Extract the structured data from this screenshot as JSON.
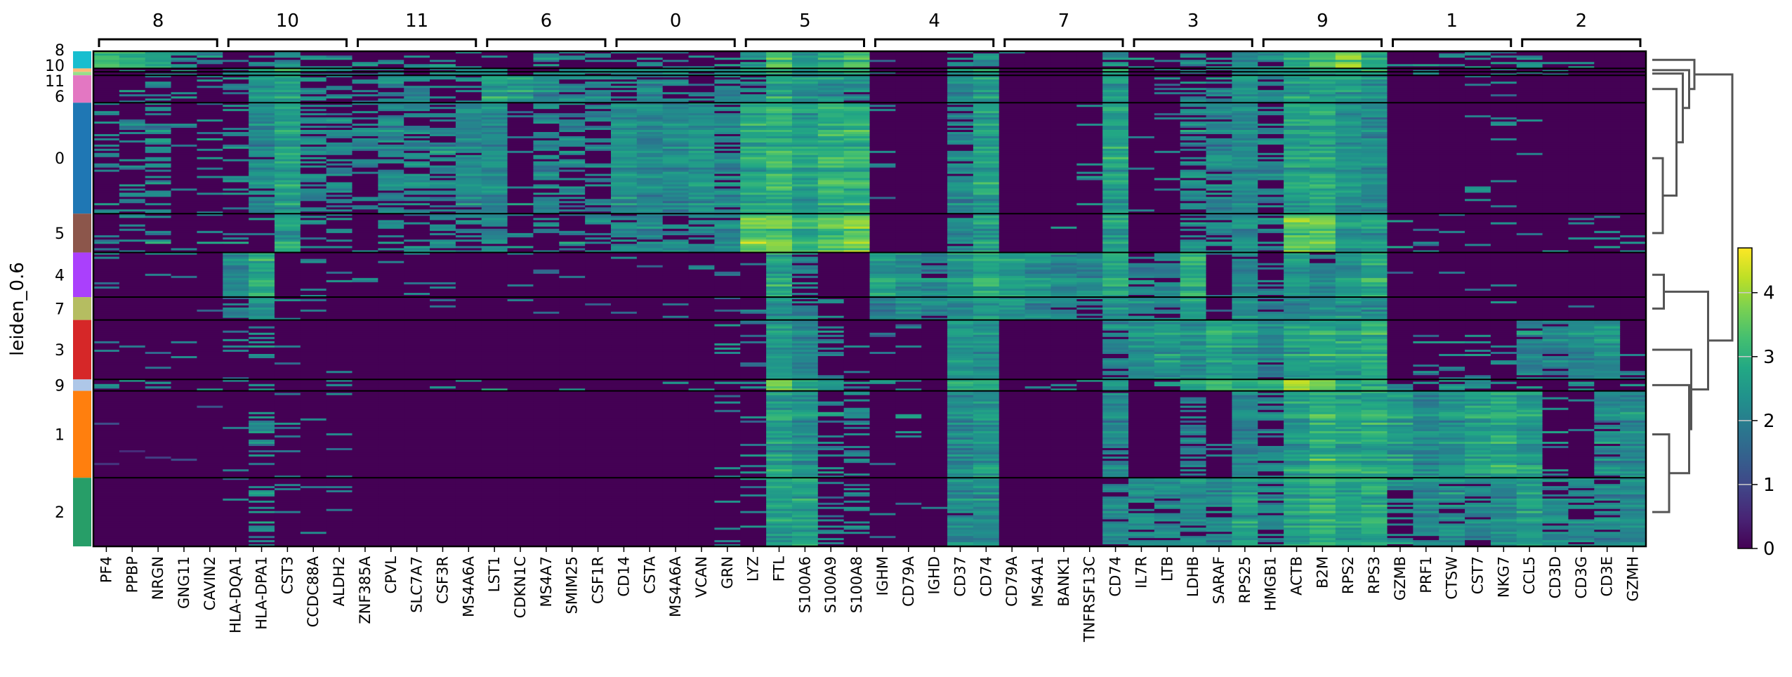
{
  "chart_data": {
    "type": "heatmap",
    "ylabel": "leiden_0.6",
    "colorbar": {
      "min": 0,
      "max": 4.7,
      "ticks": [
        "0",
        "1",
        "2",
        "3",
        "4"
      ],
      "colormap": "viridis"
    },
    "clusters": [
      "8",
      "10",
      "11",
      "6",
      "0",
      "5",
      "4",
      "7",
      "3",
      "9",
      "1",
      "2"
    ],
    "cluster_colors": [
      "#17becf",
      "#ffbb78",
      "#98df8a",
      "#e377c2",
      "#1f77b4",
      "#8c564b",
      "#aa40fc",
      "#b5bd61",
      "#d62728",
      "#aec7e8",
      "#ff7f0e",
      "#279e68"
    ],
    "cluster_relative_size": [
      15,
      3,
      3,
      24,
      97,
      34,
      39,
      20,
      52,
      10,
      76,
      60
    ],
    "gene_groups": [
      {
        "label": "8",
        "genes": [
          "PF4",
          "PPBP",
          "NRGN",
          "GNG11",
          "CAVIN2"
        ]
      },
      {
        "label": "10",
        "genes": [
          "HLA-DQA1",
          "HLA-DPA1",
          "CST3",
          "CCDC88A",
          "ALDH2"
        ]
      },
      {
        "label": "11",
        "genes": [
          "ZNF385A",
          "CPVL",
          "SLC7A7",
          "CSF3R",
          "MS4A6A"
        ]
      },
      {
        "label": "6",
        "genes": [
          "LST1",
          "CDKN1C",
          "MS4A7",
          "SMIM25",
          "CSF1R"
        ]
      },
      {
        "label": "0",
        "genes": [
          "CD14",
          "CSTA",
          "MS4A6A",
          "VCAN",
          "GRN"
        ]
      },
      {
        "label": "5",
        "genes": [
          "LYZ",
          "FTL",
          "S100A6",
          "S100A9",
          "S100A8"
        ]
      },
      {
        "label": "4",
        "genes": [
          "IGHM",
          "CD79A",
          "IGHD",
          "CD37",
          "CD74"
        ]
      },
      {
        "label": "7",
        "genes": [
          "CD79A",
          "MS4A1",
          "BANK1",
          "TNFRSF13C",
          "CD74"
        ]
      },
      {
        "label": "3",
        "genes": [
          "IL7R",
          "LTB",
          "LDHB",
          "SARAF",
          "RPS25"
        ]
      },
      {
        "label": "9",
        "genes": [
          "HMGB1",
          "ACTB",
          "B2M",
          "RPS2",
          "RPS3"
        ]
      },
      {
        "label": "1",
        "genes": [
          "GZMB",
          "PRF1",
          "CTSW",
          "CST7",
          "NKG7"
        ]
      },
      {
        "label": "2",
        "genes": [
          "CCL5",
          "CD3D",
          "CD3G",
          "CD3E",
          "GZMH"
        ]
      }
    ],
    "mean_expression": [
      [
        3.0,
        2.8,
        2.6,
        1.8,
        1.6,
        0.3,
        1.0,
        1.6,
        0.6,
        0.8,
        0.3,
        0.6,
        0.4,
        1.2,
        0.6,
        0.8,
        0.3,
        0.8,
        0.6,
        0.5,
        0.6,
        1.0,
        0.4,
        0.6,
        1.0,
        1.5,
        3.2,
        2.2,
        2.8,
        3.0,
        0.2,
        0,
        0,
        1.5,
        1.8,
        0.2,
        0,
        0,
        0,
        2.0,
        0.4,
        0.3,
        1.0,
        0.6,
        2.2,
        1.8,
        2.6,
        3.2,
        3.6,
        2.6,
        0.4,
        0.4,
        0.3,
        0.8,
        1.2,
        1.4,
        0.3,
        0.2,
        0.3,
        0.3
      ],
      [
        0.5,
        0.5,
        0.5,
        0.5,
        0.5,
        2.0,
        2.6,
        2.8,
        1.6,
        1.6,
        1.8,
        2.0,
        1.6,
        1.8,
        1.6,
        2.2,
        0.5,
        2.0,
        2.0,
        2.0,
        2.0,
        2.2,
        1.8,
        2.0,
        1.8,
        2.5,
        2.8,
        2.2,
        2.6,
        2.6,
        0.1,
        0,
        0,
        2.4,
        2.8,
        0,
        0,
        0,
        0,
        2.8,
        0.3,
        0.3,
        1.2,
        1.2,
        2.0,
        2.0,
        2.2,
        2.6,
        2.6,
        2.8,
        0.2,
        0.2,
        0.2,
        0.2,
        0.2,
        0.2,
        0.2,
        0.2,
        0.2,
        0.2
      ],
      [
        0.4,
        0.4,
        0.4,
        0.4,
        0.4,
        1.8,
        2.4,
        2.6,
        1.6,
        1.4,
        1.8,
        2.0,
        1.8,
        1.6,
        1.8,
        2.0,
        0.5,
        1.8,
        1.8,
        1.8,
        1.8,
        2.0,
        1.8,
        1.8,
        1.8,
        2.4,
        2.8,
        2.4,
        2.6,
        2.6,
        0.1,
        0,
        0,
        2.2,
        2.6,
        0,
        0,
        0,
        0,
        2.6,
        0.3,
        0.3,
        1.2,
        1.2,
        2.0,
        1.8,
        2.2,
        2.6,
        2.6,
        2.6,
        0.2,
        0.2,
        0.2,
        0.2,
        0.2,
        0.2,
        0.2,
        0.2,
        0.2,
        0.2
      ],
      [
        0.4,
        0.4,
        0.8,
        0.2,
        0.3,
        0.8,
        2.4,
        2.6,
        1.2,
        0.8,
        1.0,
        1.6,
        1.8,
        0.8,
        0.6,
        2.6,
        2.6,
        2.2,
        1.6,
        2.0,
        1.2,
        1.8,
        1.2,
        0.8,
        1.4,
        1.6,
        2.8,
        2.4,
        2.4,
        1.8,
        0,
        0,
        0,
        2.2,
        2.6,
        0,
        0,
        0,
        0,
        2.6,
        0,
        0.6,
        1.2,
        1.8,
        2.6,
        1.4,
        2.6,
        2.8,
        2.6,
        2.4,
        0,
        0,
        0,
        0.3,
        0.3,
        0,
        0,
        0,
        0,
        0
      ],
      [
        0.8,
        0.8,
        1.0,
        0.3,
        0.4,
        0.6,
        2.0,
        2.6,
        1.2,
        1.4,
        1.2,
        1.8,
        1.4,
        1.6,
        2.0,
        2.2,
        0.1,
        1.4,
        1.4,
        1.2,
        2.4,
        2.2,
        2.2,
        2.4,
        1.8,
        2.8,
        3.0,
        2.6,
        3.0,
        3.0,
        0.1,
        0,
        0,
        2.0,
        2.6,
        0,
        0,
        0,
        0.2,
        2.6,
        0.1,
        0.4,
        1.2,
        1.8,
        2.2,
        1.4,
        2.6,
        2.8,
        2.4,
        2.2,
        0,
        0,
        0,
        0.3,
        0.3,
        0.2,
        0,
        0,
        0,
        0
      ],
      [
        0.4,
        0.6,
        0.8,
        0.2,
        0.4,
        0.4,
        0.6,
        2.6,
        0.4,
        0.8,
        0.5,
        0.5,
        0.8,
        1.2,
        1.2,
        2.0,
        0.4,
        0.8,
        0.6,
        0.8,
        1.6,
        2.0,
        1.6,
        1.6,
        1.8,
        3.6,
        3.6,
        3.0,
        3.4,
        3.8,
        0.1,
        0,
        0.1,
        1.8,
        2.6,
        0,
        0,
        0.1,
        0,
        2.6,
        0,
        0.1,
        1.0,
        1.4,
        2.4,
        1.4,
        3.6,
        3.6,
        2.4,
        2.6,
        0.2,
        0.2,
        0.2,
        0.2,
        0.2,
        0.3,
        0.3,
        0.3,
        0.3,
        0.3
      ],
      [
        0.1,
        0.1,
        0.1,
        0.1,
        0.1,
        2.2,
        2.8,
        0.1,
        0.2,
        0.1,
        0.1,
        0.1,
        0.1,
        0.1,
        0.1,
        0.1,
        0.1,
        0.1,
        0.1,
        0.1,
        0.1,
        0.1,
        0.1,
        0.1,
        0.3,
        0.3,
        2.8,
        1.2,
        0.4,
        0.3,
        2.6,
        2.4,
        2.0,
        2.6,
        3.0,
        2.6,
        2.4,
        2.0,
        1.8,
        2.8,
        1.6,
        1.6,
        3.0,
        0.1,
        2.0,
        0.9,
        2.6,
        2.0,
        2.4,
        2.8,
        0.1,
        0.1,
        0.1,
        0.1,
        0.1,
        0,
        0,
        0,
        0,
        0
      ],
      [
        0.1,
        0.1,
        0.1,
        0.1,
        0.1,
        2.0,
        2.6,
        0.2,
        0.2,
        0.1,
        0.1,
        0.1,
        0.1,
        0.1,
        0.1,
        0.1,
        0.1,
        0.1,
        0.1,
        0.1,
        0.1,
        0.1,
        0.1,
        0.1,
        1.2,
        0.3,
        2.6,
        1.6,
        0.4,
        0.2,
        2.2,
        2.4,
        1.6,
        2.4,
        2.8,
        2.4,
        2.2,
        1.8,
        1.4,
        2.6,
        1.6,
        1.6,
        2.8,
        0.2,
        2.4,
        1.6,
        2.2,
        2.4,
        2.4,
        2.4,
        0.2,
        0.2,
        0.2,
        0.2,
        0.2,
        0.1,
        0.1,
        0.1,
        0.1,
        0.1
      ],
      [
        0.1,
        0.1,
        0.1,
        0.1,
        0.1,
        0.1,
        0.8,
        0.1,
        0.1,
        0.1,
        0,
        0,
        0,
        0,
        0,
        0,
        0,
        0,
        0,
        0,
        0,
        0,
        0,
        0,
        0.3,
        0.2,
        2.6,
        2.2,
        0.6,
        0.3,
        0.1,
        0.1,
        0.1,
        2.6,
        2.4,
        0,
        0,
        0,
        0,
        1.8,
        2.4,
        2.6,
        2.4,
        2.8,
        2.6,
        2.0,
        2.8,
        3.0,
        2.8,
        3.0,
        0,
        0.3,
        0.4,
        0.5,
        0.3,
        2.0,
        1.8,
        2.0,
        2.4,
        0.2
      ],
      [
        0.3,
        0.3,
        0.3,
        0.3,
        0.3,
        0.3,
        0.8,
        0.3,
        0.2,
        0.3,
        0.2,
        0.2,
        0.2,
        0.2,
        0.2,
        0.2,
        0.2,
        0.2,
        0.2,
        0.2,
        0.3,
        0.3,
        0.2,
        0.3,
        0.6,
        1.2,
        3.4,
        2.6,
        1.4,
        1.4,
        0.4,
        0.3,
        0.2,
        2.8,
        2.8,
        0.2,
        0.2,
        0.2,
        0.3,
        2.4,
        0.3,
        0.6,
        2.6,
        3.0,
        2.8,
        3.0,
        3.8,
        3.6,
        2.6,
        2.8,
        0.8,
        0.5,
        0.5,
        1.2,
        0.6,
        0.4,
        0.3,
        1.0,
        0.3,
        0.3
      ],
      [
        0.05,
        0.05,
        0.05,
        0.05,
        0.05,
        0.1,
        0.8,
        0.1,
        0.1,
        0.1,
        0,
        0,
        0,
        0,
        0,
        0,
        0,
        0,
        0,
        0,
        0,
        0,
        0,
        0,
        0.4,
        0.2,
        2.6,
        2.4,
        0.6,
        0.8,
        0.1,
        0.1,
        0.1,
        2.2,
        2.4,
        0,
        0,
        0,
        0,
        1.6,
        0,
        0,
        1.4,
        0.4,
        2.2,
        1.6,
        2.6,
        3.0,
        2.8,
        2.8,
        2.6,
        2.2,
        2.4,
        2.6,
        2.8,
        2.6,
        0.4,
        0.3,
        2.0,
        2.2
      ],
      [
        0,
        0,
        0,
        0,
        0,
        0.1,
        0.8,
        0.1,
        0.1,
        0.1,
        0,
        0,
        0,
        0,
        0,
        0,
        0,
        0,
        0,
        0,
        0,
        0,
        0,
        0,
        0.3,
        0.3,
        2.6,
        2.6,
        0.6,
        0.4,
        0.1,
        0.1,
        0.1,
        2.0,
        2.2,
        0,
        0,
        0,
        0,
        1.6,
        1.6,
        1.8,
        2.0,
        1.6,
        2.6,
        1.4,
        2.6,
        3.0,
        2.6,
        2.8,
        1.2,
        1.8,
        1.6,
        1.8,
        2.2,
        2.6,
        1.8,
        1.6,
        1.8,
        2.2
      ]
    ],
    "dendrogram": {
      "leaves": [
        "8",
        "10",
        "11",
        "6",
        "0",
        "5",
        "4",
        "7",
        "3",
        "9",
        "1",
        "2"
      ],
      "merges": [
        {
          "a": "0",
          "b": "5",
          "height": 0.5,
          "id": "n05"
        },
        {
          "a": "6",
          "b": "n05",
          "height": 1.15,
          "id": "n6"
        },
        {
          "a": "11",
          "b": "n6",
          "height": 1.45,
          "id": "n11"
        },
        {
          "a": "10",
          "b": "n11",
          "height": 1.75,
          "id": "n10"
        },
        {
          "a": "8",
          "b": "n10",
          "height": 2.0,
          "id": "n8"
        },
        {
          "a": "4",
          "b": "7",
          "height": 0.55,
          "id": "n47"
        },
        {
          "a": "1",
          "b": "2",
          "height": 0.8,
          "id": "n12"
        },
        {
          "a": "9",
          "b": "n12",
          "height": 1.75,
          "id": "n9"
        },
        {
          "a": "3",
          "b": "n9",
          "height": 1.85,
          "id": "n3"
        },
        {
          "a": "n47",
          "b": "n3",
          "height": 2.65,
          "id": "nlow"
        },
        {
          "a": "n8",
          "b": "nlow",
          "height": 3.8,
          "id": "root"
        }
      ]
    }
  }
}
